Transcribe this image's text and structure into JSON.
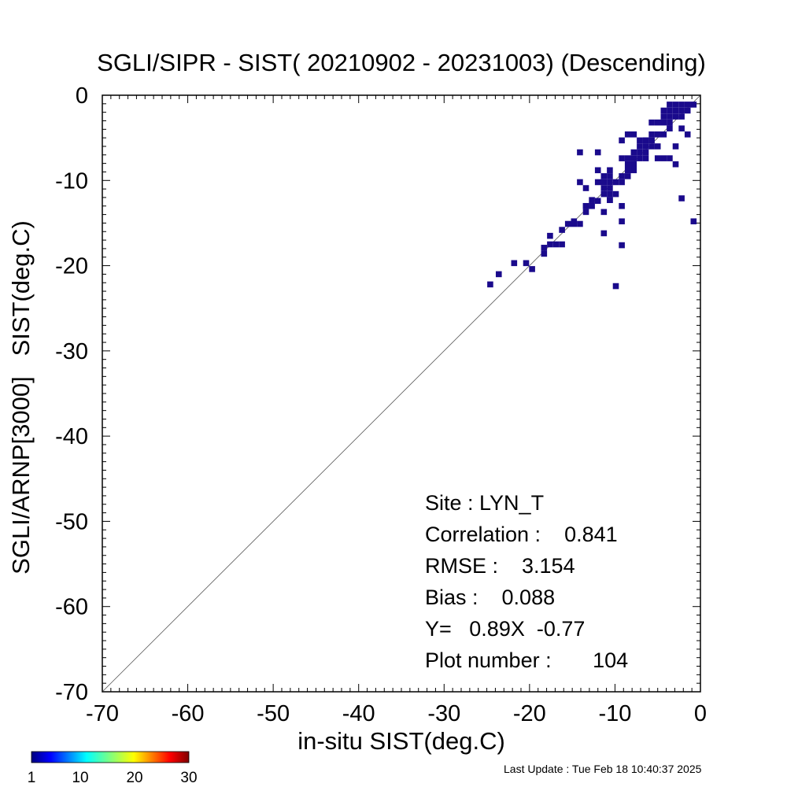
{
  "chart_data": {
    "type": "heatmap",
    "title": "SGLI/SIPR - SIST( 20210902 - 20231003) (Descending)",
    "xlabel": "in-situ SIST(deg.C)",
    "ylabel": "SGLI/ARNP[3000]   SIST(deg.C)",
    "xlim": [
      -70,
      0
    ],
    "ylim": [
      -70,
      0
    ],
    "x_ticks": [
      "-70",
      "-60",
      "-50",
      "-40",
      "-30",
      "-20",
      "-10",
      "0"
    ],
    "y_ticks": [
      "0",
      "-10",
      "-20",
      "-30",
      "-40",
      "-50",
      "-60",
      "-70"
    ],
    "reference_line": "y=x",
    "colorbar": {
      "ticks": [
        "1",
        "10",
        "20",
        "30"
      ],
      "min": 1,
      "max": 30,
      "colormap": "jet"
    },
    "bin_size": 0.7,
    "cell_color": "#1a0a8c",
    "points": [
      [
        -24.6,
        -22.2
      ],
      [
        -23.6,
        -21.0
      ],
      [
        -21.8,
        -19.7
      ],
      [
        -20.4,
        -19.7
      ],
      [
        -19.7,
        -20.4
      ],
      [
        -18.3,
        -17.9
      ],
      [
        -18.3,
        -18.6
      ],
      [
        -17.6,
        -16.5
      ],
      [
        -17.6,
        -17.5
      ],
      [
        -16.2,
        -17.5
      ],
      [
        -16.9,
        -17.5
      ],
      [
        -16.2,
        -15.8
      ],
      [
        -15.5,
        -15.1
      ],
      [
        -14.8,
        -15.1
      ],
      [
        -14.1,
        -15.1
      ],
      [
        -14.8,
        -14.8
      ],
      [
        -13.4,
        -13.0
      ],
      [
        -12.7,
        -13.0
      ],
      [
        -13.4,
        -13.7
      ],
      [
        -12.0,
        -12.4
      ],
      [
        -11.3,
        -11.6
      ],
      [
        -11.3,
        -10.9
      ],
      [
        -10.6,
        -10.9
      ],
      [
        -11.3,
        -10.2
      ],
      [
        -10.6,
        -10.2
      ],
      [
        -12.0,
        -10.2
      ],
      [
        -10.6,
        -11.6
      ],
      [
        -10.6,
        -12.3
      ],
      [
        -9.9,
        -11.6
      ],
      [
        -9.9,
        -10.2
      ],
      [
        -9.2,
        -10.2
      ],
      [
        -9.2,
        -9.5
      ],
      [
        -8.5,
        -8.8
      ],
      [
        -7.8,
        -8.8
      ],
      [
        -8.5,
        -8.1
      ],
      [
        -7.8,
        -7.4
      ],
      [
        -7.1,
        -7.4
      ],
      [
        -7.1,
        -6.7
      ],
      [
        -6.4,
        -6.7
      ],
      [
        -6.4,
        -6.0
      ],
      [
        -5.7,
        -6.0
      ],
      [
        -6.4,
        -5.3
      ],
      [
        -5.7,
        -5.3
      ],
      [
        -5.7,
        -4.6
      ],
      [
        -5.0,
        -4.6
      ],
      [
        -5.0,
        -3.2
      ],
      [
        -4.3,
        -3.2
      ],
      [
        -3.6,
        -3.2
      ],
      [
        -5.7,
        -3.2
      ],
      [
        -3.6,
        -2.5
      ],
      [
        -2.9,
        -2.5
      ],
      [
        -2.9,
        -1.8
      ],
      [
        -3.6,
        -1.8
      ],
      [
        -3.6,
        -1.1
      ],
      [
        -2.9,
        -1.1
      ],
      [
        -2.2,
        -1.1
      ],
      [
        -1.5,
        -1.1
      ],
      [
        -0.8,
        -1.1
      ],
      [
        -4.3,
        -1.8
      ],
      [
        -2.2,
        -2.5
      ],
      [
        -14.1,
        -6.7
      ],
      [
        -12.0,
        -6.7
      ],
      [
        -14.1,
        -10.2
      ],
      [
        -13.4,
        -10.9
      ],
      [
        -12.0,
        -8.8
      ],
      [
        -11.3,
        -9.5
      ],
      [
        -10.6,
        -8.8
      ],
      [
        -9.2,
        -5.3
      ],
      [
        -8.5,
        -4.6
      ],
      [
        -7.8,
        -4.6
      ],
      [
        -7.1,
        -5.3
      ],
      [
        -4.3,
        -4.6
      ],
      [
        -2.9,
        -6.0
      ],
      [
        -1.5,
        -4.6
      ],
      [
        -3.6,
        -7.4
      ],
      [
        -2.9,
        -8.1
      ],
      [
        -4.3,
        -7.4
      ],
      [
        -5.0,
        -7.4
      ],
      [
        -8.5,
        -7.4
      ],
      [
        -9.2,
        -7.4
      ],
      [
        -9.2,
        -14.8
      ],
      [
        -9.2,
        -13.0
      ],
      [
        -9.2,
        -17.6
      ],
      [
        -11.3,
        -13.7
      ],
      [
        -11.3,
        -16.2
      ],
      [
        -9.9,
        -22.4
      ],
      [
        -2.2,
        -12.1
      ],
      [
        -0.8,
        -14.8
      ],
      [
        -2.2,
        -3.9
      ],
      [
        -1.5,
        -1.8
      ],
      [
        -5.0,
        -6.0
      ],
      [
        -6.4,
        -7.4
      ],
      [
        -7.8,
        -8.1
      ],
      [
        -10.6,
        -12.3
      ],
      [
        -12.7,
        -12.3
      ],
      [
        -13.4,
        -13.0
      ],
      [
        -10.6,
        -9.5
      ],
      [
        -4.3,
        -2.5
      ],
      [
        -7.1,
        -6.0
      ],
      [
        -8.5,
        -9.5
      ],
      [
        -6.4,
        -5.3
      ],
      [
        -2.2,
        -1.8
      ],
      [
        -3.6,
        -3.9
      ],
      [
        -7.8,
        -6.7
      ]
    ]
  },
  "stats": {
    "site": "Site : LYN_T",
    "correlation": "Correlation :    0.841",
    "rmse": "RMSE :    3.154",
    "bias": "Bias :    0.088",
    "fit": "Y=   0.89X  -0.77",
    "plot_number": "Plot number :       104"
  },
  "footer": {
    "last_update": "Last Update : Tue Feb 18 10:40:37 2025"
  }
}
